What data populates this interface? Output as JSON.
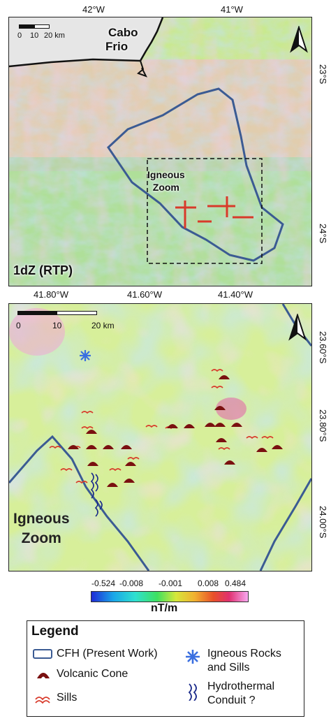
{
  "top_map": {
    "lon_ticks": [
      "42°W",
      "41°W"
    ],
    "lat_ticks": [
      "23°S",
      "24°S"
    ],
    "scale": {
      "labels": [
        "0",
        "10",
        "20 km"
      ]
    },
    "place_label": [
      "Cabo",
      "Frio"
    ],
    "zoom_label": [
      "Igneous",
      "Zoom"
    ],
    "panel_label": "1dZ (RTP)"
  },
  "bottom_map": {
    "lon_ticks": [
      "41.80°W",
      "41.60°W",
      "41.40°W"
    ],
    "lat_ticks": [
      "23.60°S",
      "23.80°S",
      "24.00°S"
    ],
    "scale": {
      "labels": [
        "0",
        "10",
        "20 km"
      ]
    },
    "panel_label": [
      "Igneous",
      "Zoom"
    ]
  },
  "colorbar": {
    "ticks": [
      "-0.524",
      "-0.008",
      "-0.001",
      "0.008",
      "0.484"
    ],
    "unit": "nT/m"
  },
  "legend": {
    "title": "Legend",
    "items": {
      "cfh": "CFH (Present Work)",
      "volcanic": "Volcanic Cone",
      "sills": "Sills",
      "igneous": [
        "Igneous Rocks",
        "and Sills"
      ],
      "hydro": [
        "Hydrothermal",
        "Conduit ?"
      ]
    }
  },
  "colors": {
    "cfh_outline": "#3b5b93",
    "volcanic": "#7a1010",
    "sills": "#d83a2a",
    "igneous_symbol": "#3a6fe0",
    "hydro": "#1a2a8a"
  }
}
